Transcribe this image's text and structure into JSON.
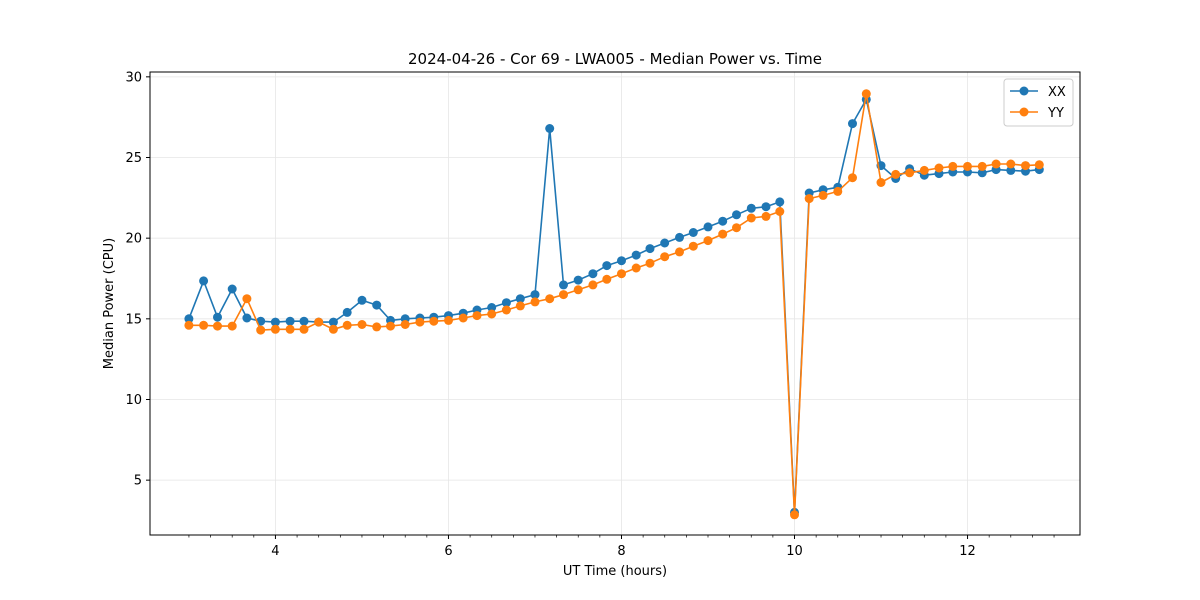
{
  "chart_data": {
    "type": "line",
    "title": "2024-04-26 - Cor 69 - LWA005 - Median Power vs. Time",
    "xlabel": "UT Time (hours)",
    "ylabel": "Median Power (CPU)",
    "xlim": [
      2.55,
      13.3
    ],
    "ylim": [
      1.6,
      30.3
    ],
    "xticks": [
      4,
      6,
      8,
      10,
      12
    ],
    "xtick_labels": [
      "4",
      "6",
      "8",
      "10",
      "12"
    ],
    "yticks": [
      5,
      10,
      15,
      20,
      25,
      30
    ],
    "ytick_labels": [
      "5",
      "10",
      "15",
      "20",
      "25",
      "30"
    ],
    "grid": true,
    "legend_position": "top-right",
    "x": [
      3.0,
      3.17,
      3.33,
      3.5,
      3.67,
      3.83,
      4.0,
      4.17,
      4.33,
      4.5,
      4.67,
      4.83,
      5.0,
      5.17,
      5.33,
      5.5,
      5.67,
      5.83,
      6.0,
      6.17,
      6.33,
      6.5,
      6.67,
      6.83,
      7.0,
      7.17,
      7.33,
      7.5,
      7.67,
      7.83,
      8.0,
      8.17,
      8.33,
      8.5,
      8.67,
      8.83,
      9.0,
      9.17,
      9.33,
      9.5,
      9.67,
      9.83,
      10.0,
      10.17,
      10.33,
      10.5,
      10.67,
      10.83,
      11.0,
      11.17,
      11.33,
      11.5,
      11.67,
      11.83,
      12.0,
      12.17,
      12.33,
      12.5,
      12.67,
      12.83
    ],
    "series": [
      {
        "name": "XX",
        "color": "#1f77b4",
        "values": [
          15.0,
          17.35,
          15.1,
          16.85,
          15.05,
          14.85,
          14.8,
          14.85,
          14.85,
          14.8,
          14.8,
          15.4,
          16.15,
          15.85,
          14.9,
          15.0,
          15.05,
          15.1,
          15.2,
          15.35,
          15.55,
          15.7,
          16.0,
          16.25,
          16.5,
          26.8,
          17.1,
          17.4,
          17.8,
          18.3,
          18.6,
          18.95,
          19.35,
          19.7,
          20.05,
          20.35,
          20.7,
          21.05,
          21.45,
          21.85,
          21.95,
          22.25,
          3.0,
          22.8,
          23.0,
          23.15,
          27.1,
          28.6,
          24.5,
          23.7,
          24.3,
          23.9,
          24.0,
          24.1,
          24.1,
          24.05,
          24.25,
          24.2,
          24.15,
          24.25
        ]
      },
      {
        "name": "YY",
        "color": "#ff7f0e",
        "values": [
          14.6,
          14.6,
          14.55,
          14.55,
          16.25,
          14.3,
          14.35,
          14.35,
          14.35,
          14.8,
          14.35,
          14.6,
          14.65,
          14.5,
          14.55,
          14.65,
          14.8,
          14.85,
          14.9,
          15.05,
          15.2,
          15.3,
          15.55,
          15.8,
          16.05,
          16.25,
          16.5,
          16.8,
          17.1,
          17.45,
          17.8,
          18.15,
          18.45,
          18.85,
          19.15,
          19.5,
          19.85,
          20.25,
          20.65,
          21.25,
          21.35,
          21.65,
          2.85,
          22.45,
          22.65,
          22.9,
          23.75,
          28.95,
          23.45,
          23.95,
          24.05,
          24.2,
          24.35,
          24.45,
          24.45,
          24.45,
          24.6,
          24.6,
          24.5,
          24.55
        ]
      }
    ]
  }
}
